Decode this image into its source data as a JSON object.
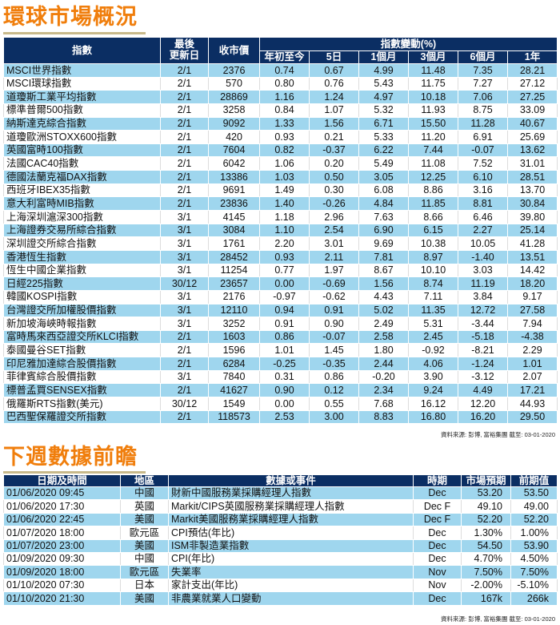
{
  "market": {
    "title": "環球市場概況",
    "headers": {
      "index": "指數",
      "last_update": "最後\n更新日",
      "close": "收市價",
      "change_group": "指數變動(%)",
      "ytd": "年初至今",
      "d5": "5日",
      "m1": "1個月",
      "m3": "3個月",
      "m6": "6個月",
      "y1": "1年"
    },
    "rows": [
      [
        "MSCI世界指數",
        "2/1",
        "2376",
        "0.74",
        "0.67",
        "4.99",
        "11.48",
        "7.35",
        "28.21"
      ],
      [
        "MSCI環球指數",
        "2/1",
        "570",
        "0.80",
        "0.76",
        "5.43",
        "11.75",
        "7.27",
        "27.12"
      ],
      [
        "道瓊斯工業平均指數",
        "2/1",
        "28869",
        "1.16",
        "1.24",
        "4.97",
        "10.18",
        "7.06",
        "27.25"
      ],
      [
        "標準普爾500指數",
        "2/1",
        "3258",
        "0.84",
        "1.07",
        "5.32",
        "11.93",
        "8.75",
        "33.09"
      ],
      [
        "納斯達克綜合指數",
        "2/1",
        "9092",
        "1.33",
        "1.56",
        "6.71",
        "15.50",
        "11.28",
        "40.67"
      ],
      [
        "道瓊歐洲STOXX600指數",
        "2/1",
        "420",
        "0.93",
        "0.21",
        "5.33",
        "11.20",
        "6.91",
        "25.69"
      ],
      [
        "英國富時100指數",
        "2/1",
        "7604",
        "0.82",
        "-0.37",
        "6.22",
        "7.44",
        "-0.07",
        "13.62"
      ],
      [
        "法國CAC40指數",
        "2/1",
        "6042",
        "1.06",
        "0.20",
        "5.49",
        "11.08",
        "7.52",
        "31.01"
      ],
      [
        "德國法蘭克福DAX指數",
        "2/1",
        "13386",
        "1.03",
        "0.50",
        "3.05",
        "12.25",
        "6.10",
        "28.51"
      ],
      [
        "西班牙IBEX35指數",
        "2/1",
        "9691",
        "1.49",
        "0.30",
        "6.08",
        "8.86",
        "3.16",
        "13.70"
      ],
      [
        "意大利富時MIB指數",
        "2/1",
        "23836",
        "1.40",
        "-0.26",
        "4.84",
        "11.85",
        "8.81",
        "30.84"
      ],
      [
        "上海深圳滬深300指數",
        "3/1",
        "4145",
        "1.18",
        "2.96",
        "7.63",
        "8.66",
        "6.46",
        "39.80"
      ],
      [
        "上海證券交易所綜合指數",
        "3/1",
        "3084",
        "1.10",
        "2.54",
        "6.90",
        "6.15",
        "2.27",
        "25.14"
      ],
      [
        "深圳證交所綜合指數",
        "3/1",
        "1761",
        "2.20",
        "3.01",
        "9.69",
        "10.38",
        "10.05",
        "41.28"
      ],
      [
        "香港恆生指數",
        "3/1",
        "28452",
        "0.93",
        "2.11",
        "7.81",
        "8.97",
        "-1.40",
        "13.51"
      ],
      [
        "恆生中國企業指數",
        "3/1",
        "11254",
        "0.77",
        "1.97",
        "8.67",
        "10.10",
        "3.03",
        "14.42"
      ],
      [
        "日經225指數",
        "30/12",
        "23657",
        "0.00",
        "-0.69",
        "1.56",
        "8.74",
        "11.19",
        "18.20"
      ],
      [
        "韓國KOSPI指數",
        "3/1",
        "2176",
        "-0.97",
        "-0.62",
        "4.43",
        "7.11",
        "3.84",
        "9.17"
      ],
      [
        "台灣證交所加權股價指數",
        "3/1",
        "12110",
        "0.94",
        "0.91",
        "5.02",
        "11.35",
        "12.72",
        "27.58"
      ],
      [
        "新加坡海峽時報指數",
        "3/1",
        "3252",
        "0.91",
        "0.90",
        "2.49",
        "5.31",
        "-3.44",
        "7.94"
      ],
      [
        "富時馬來西亞證交所KLCI指數",
        "2/1",
        "1603",
        "0.86",
        "-0.07",
        "2.58",
        "2.45",
        "-5.18",
        "-4.38"
      ],
      [
        "泰國曼谷SET指數",
        "2/1",
        "1596",
        "1.01",
        "1.45",
        "1.80",
        "-0.92",
        "-8.21",
        "2.29"
      ],
      [
        "印尼雅加達綜合股價指數",
        "2/1",
        "6284",
        "-0.25",
        "-0.35",
        "2.44",
        "4.06",
        "-1.24",
        "1.01"
      ],
      [
        "菲律賓綜合股價指數",
        "3/1",
        "7840",
        "0.31",
        "0.86",
        "-0.20",
        "3.90",
        "-3.12",
        "2.07"
      ],
      [
        "標普孟買SENSEX指數",
        "2/1",
        "41627",
        "0.90",
        "0.12",
        "2.34",
        "9.24",
        "4.49",
        "17.21"
      ],
      [
        "俄羅斯RTS指數(美元)",
        "30/12",
        "1549",
        "0.00",
        "0.55",
        "7.68",
        "16.12",
        "12.20",
        "44.93"
      ],
      [
        "巴西聖保羅證交所指數",
        "2/1",
        "118573",
        "2.53",
        "3.00",
        "8.83",
        "16.80",
        "16.20",
        "29.50"
      ]
    ],
    "source": "資料來源: 彭博, 富裕集團 截至: 03-01-2020"
  },
  "calendar": {
    "title": "下週數據前瞻",
    "headers": {
      "datetime": "日期及時間",
      "region": "地區",
      "event": "數據或事件",
      "period": "時期",
      "forecast": "市場預期",
      "previous": "前期值"
    },
    "rows": [
      [
        "01/06/2020 09:45",
        "中國",
        "財新中國服務業採購經理人指數",
        "Dec",
        "53.20",
        "53.50"
      ],
      [
        "01/06/2020 17:30",
        "英國",
        "Markit/CIPS英國服務業採購經理人指數",
        "Dec F",
        "49.10",
        "49.00"
      ],
      [
        "01/06/2020 22:45",
        "美國",
        "Markit美國服務業採購經理人指數",
        "Dec F",
        "52.20",
        "52.20"
      ],
      [
        "01/07/2020 18:00",
        "歐元區",
        "CPI預估(年比)",
        "Dec",
        "1.30%",
        "1.00%"
      ],
      [
        "01/07/2020 23:00",
        "美國",
        "ISM非製造業指數",
        "Dec",
        "54.50",
        "53.90"
      ],
      [
        "01/09/2020 09:30",
        "中國",
        "CPI(年比)",
        "Dec",
        "4.70%",
        "4.50%"
      ],
      [
        "01/09/2020 18:00",
        "歐元區",
        "失業率",
        "Nov",
        "7.50%",
        "7.50%"
      ],
      [
        "01/10/2020 07:30",
        "日本",
        "家計支出(年比)",
        "Nov",
        "-2.00%",
        "-5.10%"
      ],
      [
        "01/10/2020 21:30",
        "美國",
        "非農業就業人口變動",
        "Dec",
        "167k",
        "266k"
      ]
    ],
    "source": "資料來源: 彭博, 富裕集團 截至: 03-01-2020"
  }
}
